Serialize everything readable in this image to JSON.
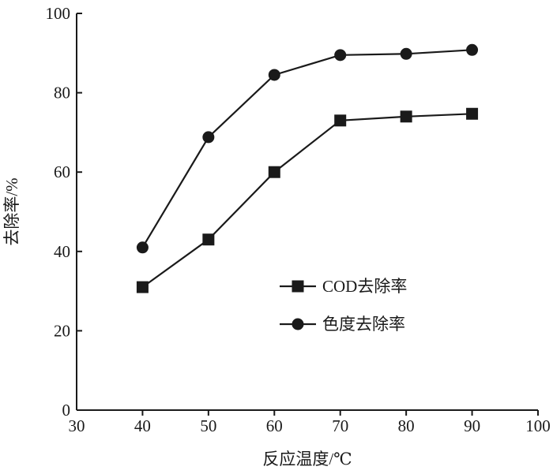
{
  "chart_data": {
    "type": "line",
    "x": [
      40,
      50,
      60,
      70,
      80,
      90
    ],
    "series": [
      {
        "name": "COD去除率",
        "marker": "square",
        "values": [
          31,
          43,
          60,
          73,
          74,
          74.7
        ]
      },
      {
        "name": "色度去除率",
        "marker": "circle",
        "values": [
          41,
          68.8,
          84.5,
          89.5,
          89.8,
          90.8
        ]
      }
    ],
    "title": "",
    "xlabel": "反应温度/℃",
    "ylabel": "去除率/%",
    "xlim": [
      30,
      100
    ],
    "ylim": [
      0,
      100
    ],
    "xticks": [
      "30",
      "40",
      "50",
      "60",
      "70",
      "80",
      "90",
      "100"
    ],
    "yticks": [
      "0",
      "20",
      "40",
      "60",
      "80",
      "100"
    ],
    "grid": false,
    "legend_position": "center-right",
    "colors": {
      "line": "#1a1a1a",
      "marker": "#1a1a1a"
    }
  }
}
